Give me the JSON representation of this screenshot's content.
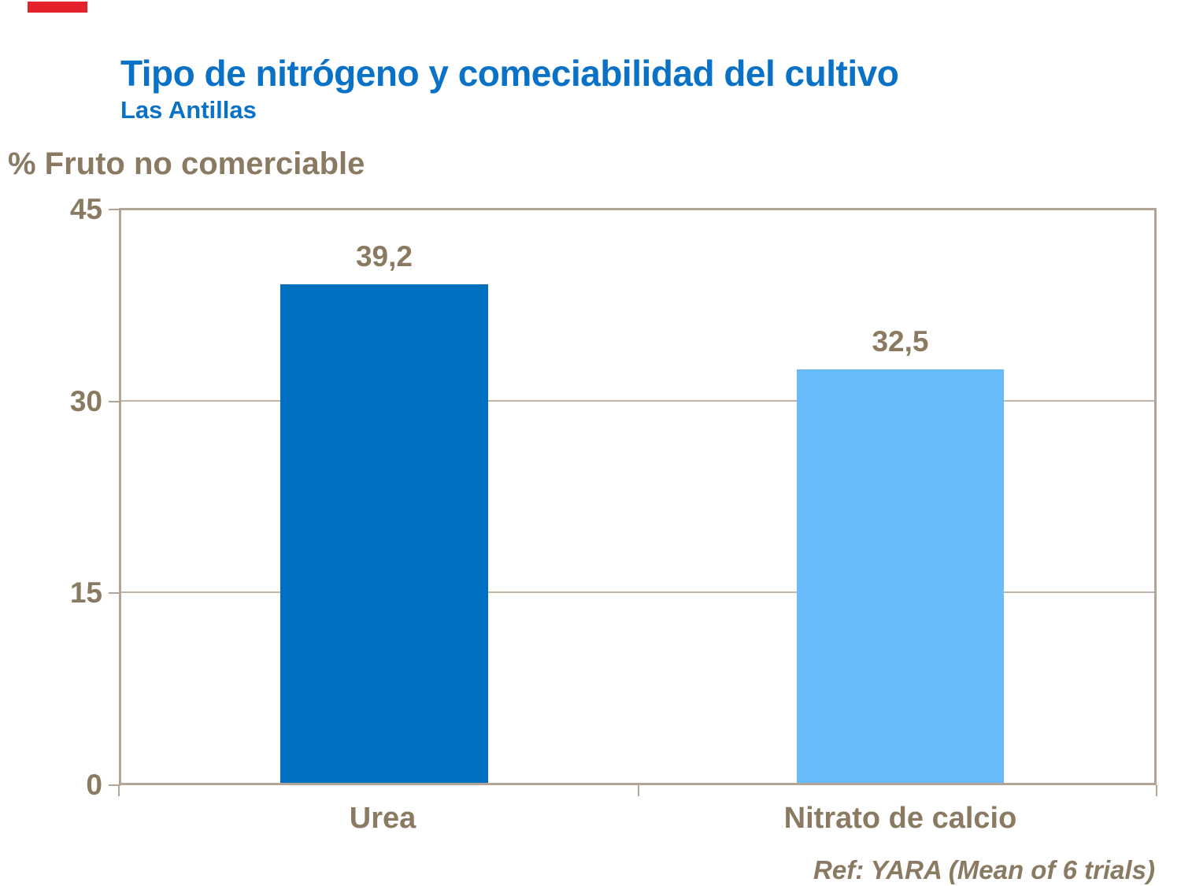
{
  "slide": {
    "red_mark_color": "#e3222b"
  },
  "chart_data": {
    "type": "bar",
    "title": "Tipo de nitrógeno y comeciabilidad del cultivo",
    "subtitle": "Las Antillas",
    "ylabel": "% Fruto no comerciable",
    "xlabel": "",
    "categories": [
      "Urea",
      "Nitrato de calcio"
    ],
    "values": [
      39.2,
      32.5
    ],
    "value_labels": [
      "39,2",
      "32,5"
    ],
    "bar_colors": [
      "#0070c0",
      "#68bbf8"
    ],
    "ylim": [
      0,
      45
    ],
    "yticks": [
      0,
      15,
      30,
      45
    ],
    "ytick_labels": [
      "0",
      "15",
      "30",
      "45"
    ],
    "grid": "horizontal gridlines at 15 and 30",
    "legend": "none",
    "frame_color": "#b2a496",
    "text_color": "#8b7a62",
    "title_color": "#0a72c6",
    "source": "Ref: YARA (Mean of 6 trials)"
  }
}
